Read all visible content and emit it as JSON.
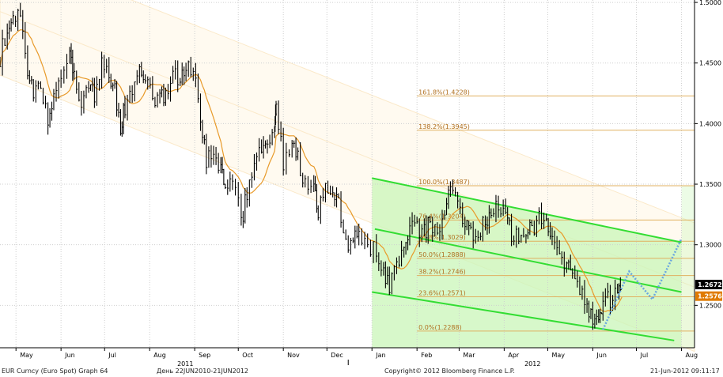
{
  "footer": {
    "left": "EUR Curncy (Euro Spot) Graph 64",
    "period": "День 22JUN2010-21JUN2012",
    "copyright": "Copyright© 2012 Bloomberg Finance L.P.",
    "datetime": "21-Jun-2012 09:11:17"
  },
  "chart_data": {
    "type": "line",
    "title": "",
    "xlabel": "",
    "ylabel": "",
    "ylim": [
      1.215,
      1.502
    ],
    "x_ticks": [
      {
        "label": "May",
        "date": "2011-05-01"
      },
      {
        "label": "Jun",
        "date": "2011-06-01"
      },
      {
        "label": "Jul",
        "date": "2011-07-01"
      },
      {
        "label": "Aug",
        "date": "2011-08-01"
      },
      {
        "label": "Sep",
        "date": "2011-09-01"
      },
      {
        "label": "Oct",
        "date": "2011-10-01"
      },
      {
        "label": "Nov",
        "date": "2011-11-01"
      },
      {
        "label": "Dec",
        "date": "2011-12-01"
      },
      {
        "label": "Jan",
        "date": "2012-01-01"
      },
      {
        "label": "Feb",
        "date": "2012-02-01"
      },
      {
        "label": "Mar",
        "date": "2012-03-01"
      },
      {
        "label": "Apr",
        "date": "2012-04-01"
      },
      {
        "label": "May",
        "date": "2012-05-01"
      },
      {
        "label": "Jun",
        "date": "2012-06-01"
      },
      {
        "label": "Jul",
        "date": "2012-07-01"
      },
      {
        "label": "Aug",
        "date": "2012-08-01"
      }
    ],
    "year_labels": [
      {
        "label": "2011",
        "date": "2011-08-20"
      },
      {
        "label": "2012",
        "date": "2012-04-15"
      }
    ],
    "y_ticks": [
      "1.5000",
      "1.4500",
      "1.4000",
      "1.3500",
      "1.3000",
      "1.2500"
    ],
    "price_tags": [
      {
        "label": "1.2672",
        "value": 1.2672,
        "color": "#000000"
      },
      {
        "label": "1.2576",
        "value": 1.2576,
        "color": "#e07b00"
      }
    ],
    "grid": true,
    "colors": {
      "price": "#000000",
      "moving_average": "#e89a2a",
      "channel_lines": "#33dd33",
      "channel_fill": "#c9f5b8",
      "projection": "#6aa6e0",
      "fib_lines": "#e0b060",
      "old_channel": "#fbe9c9"
    },
    "series": [
      {
        "type": "ohlc_approx",
        "values": [
          [
            "2011-04-20",
            1.455
          ],
          [
            "2011-04-25",
            1.48
          ],
          [
            "2011-04-29",
            1.484
          ],
          [
            "2011-05-04",
            1.488
          ],
          [
            "2011-05-09",
            1.445
          ],
          [
            "2011-05-13",
            1.42
          ],
          [
            "2011-05-18",
            1.43
          ],
          [
            "2011-05-23",
            1.405
          ],
          [
            "2011-05-27",
            1.425
          ],
          [
            "2011-06-01",
            1.445
          ],
          [
            "2011-06-07",
            1.462
          ],
          [
            "2011-06-10",
            1.44
          ],
          [
            "2011-06-15",
            1.42
          ],
          [
            "2011-06-20",
            1.435
          ],
          [
            "2011-06-24",
            1.425
          ],
          [
            "2011-06-29",
            1.448
          ],
          [
            "2011-07-04",
            1.445
          ],
          [
            "2011-07-08",
            1.425
          ],
          [
            "2011-07-12",
            1.395
          ],
          [
            "2011-07-15",
            1.415
          ],
          [
            "2011-07-20",
            1.425
          ],
          [
            "2011-07-25",
            1.44
          ],
          [
            "2011-07-29",
            1.435
          ],
          [
            "2011-08-03",
            1.42
          ],
          [
            "2011-08-08",
            1.425
          ],
          [
            "2011-08-12",
            1.425
          ],
          [
            "2011-08-17",
            1.44
          ],
          [
            "2011-08-22",
            1.44
          ],
          [
            "2011-08-26",
            1.447
          ],
          [
            "2011-08-31",
            1.445
          ],
          [
            "2011-09-05",
            1.405
          ],
          [
            "2011-09-09",
            1.37
          ],
          [
            "2011-09-14",
            1.375
          ],
          [
            "2011-09-19",
            1.365
          ],
          [
            "2011-09-22",
            1.345
          ],
          [
            "2011-09-27",
            1.355
          ],
          [
            "2011-10-03",
            1.32
          ],
          [
            "2011-10-07",
            1.34
          ],
          [
            "2011-10-12",
            1.375
          ],
          [
            "2011-10-17",
            1.38
          ],
          [
            "2011-10-21",
            1.385
          ],
          [
            "2011-10-26",
            1.4
          ],
          [
            "2011-10-27",
            1.415
          ],
          [
            "2011-11-01",
            1.365
          ],
          [
            "2011-11-07",
            1.38
          ],
          [
            "2011-11-11",
            1.37
          ],
          [
            "2011-11-16",
            1.35
          ],
          [
            "2011-11-22",
            1.345
          ],
          [
            "2011-11-25",
            1.325
          ],
          [
            "2011-11-30",
            1.345
          ],
          [
            "2011-12-05",
            1.34
          ],
          [
            "2011-12-09",
            1.335
          ],
          [
            "2011-12-14",
            1.3
          ],
          [
            "2011-12-19",
            1.305
          ],
          [
            "2011-12-23",
            1.305
          ],
          [
            "2011-12-29",
            1.295
          ],
          [
            "2012-01-04",
            1.295
          ],
          [
            "2012-01-09",
            1.277
          ],
          [
            "2012-01-13",
            1.268
          ],
          [
            "2012-01-18",
            1.28
          ],
          [
            "2012-01-23",
            1.3
          ],
          [
            "2012-01-27",
            1.31
          ],
          [
            "2012-02-01",
            1.315
          ],
          [
            "2012-02-06",
            1.31
          ],
          [
            "2012-02-10",
            1.32
          ],
          [
            "2012-02-15",
            1.31
          ],
          [
            "2012-02-20",
            1.325
          ],
          [
            "2012-02-24",
            1.345
          ],
          [
            "2012-02-29",
            1.335
          ],
          [
            "2012-03-05",
            1.315
          ],
          [
            "2012-03-09",
            1.31
          ],
          [
            "2012-03-14",
            1.305
          ],
          [
            "2012-03-19",
            1.32
          ],
          [
            "2012-03-23",
            1.322
          ],
          [
            "2012-03-28",
            1.333
          ],
          [
            "2012-04-02",
            1.33
          ],
          [
            "2012-04-06",
            1.31
          ],
          [
            "2012-04-11",
            1.31
          ],
          [
            "2012-04-16",
            1.31
          ],
          [
            "2012-04-20",
            1.315
          ],
          [
            "2012-04-25",
            1.32
          ],
          [
            "2012-04-30",
            1.322
          ],
          [
            "2012-05-04",
            1.305
          ],
          [
            "2012-05-09",
            1.295
          ],
          [
            "2012-05-14",
            1.282
          ],
          [
            "2012-05-18",
            1.27
          ],
          [
            "2012-05-23",
            1.26
          ],
          [
            "2012-05-28",
            1.25
          ],
          [
            "2012-06-01",
            1.235
          ],
          [
            "2012-06-05",
            1.245
          ],
          [
            "2012-06-08",
            1.25
          ],
          [
            "2012-06-13",
            1.255
          ],
          [
            "2012-06-18",
            1.262
          ],
          [
            "2012-06-21",
            1.2672
          ]
        ]
      }
    ],
    "fibonacci": [
      {
        "label": "161.8%(1.4228)",
        "value": 1.4228
      },
      {
        "label": "138.2%(1.3945)",
        "value": 1.3945
      },
      {
        "label": "100.0%(1.3487)",
        "value": 1.3487
      },
      {
        "label": "76.4%(1.3204)",
        "value": 1.3204
      },
      {
        "label": "61.8%(1.3029)",
        "value": 1.3029
      },
      {
        "label": "50.0%(1.2888)",
        "value": 1.2888
      },
      {
        "label": "38.2%(1.2746)",
        "value": 1.2746
      },
      {
        "label": "23.6%(1.2571)",
        "value": 1.2571
      },
      {
        "label": "0.0%(1.2288)",
        "value": 1.2288
      }
    ],
    "green_channel": [
      [
        [
          "2012-01-01",
          1.355
        ],
        [
          "2012-08-01",
          1.302
        ]
      ],
      [
        [
          "2012-01-03",
          1.313
        ],
        [
          "2012-08-01",
          1.261
        ]
      ],
      [
        [
          "2012-01-01",
          1.261
        ],
        [
          "2012-07-27",
          1.221
        ]
      ]
    ],
    "projection": [
      [
        "2012-06-08",
        1.23
      ],
      [
        "2012-06-26",
        1.278
      ],
      [
        "2012-07-12",
        1.255
      ],
      [
        "2012-08-01",
        1.305
      ]
    ]
  }
}
